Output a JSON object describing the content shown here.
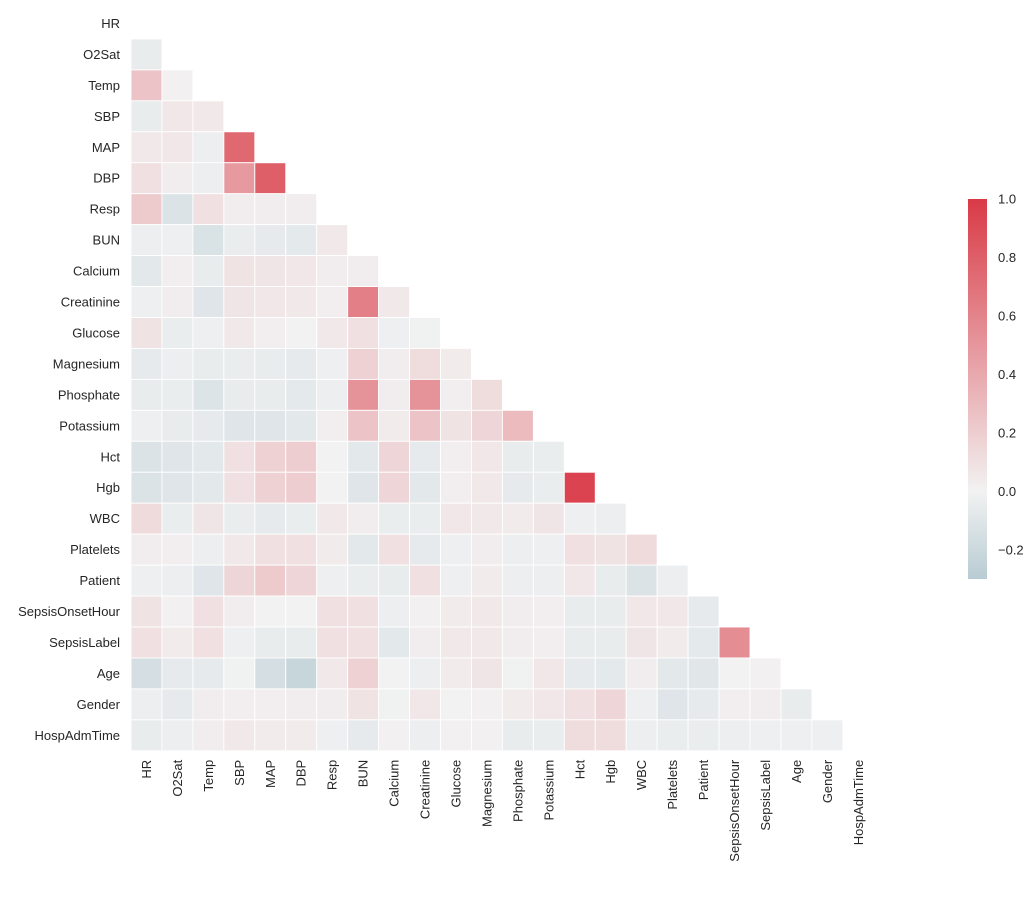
{
  "chart_data": {
    "type": "heatmap",
    "mask": "upper-triangle-including-diagonal",
    "grid": false,
    "legend_placement": "right",
    "variables": [
      "HR",
      "O2Sat",
      "Temp",
      "SBP",
      "MAP",
      "DBP",
      "Resp",
      "BUN",
      "Calcium",
      "Creatinine",
      "Glucose",
      "Magnesium",
      "Phosphate",
      "Potassium",
      "Hct",
      "Hgb",
      "WBC",
      "Platelets",
      "Patient",
      "SepsisOnsetHour",
      "SepsisLabel",
      "Age",
      "Gender",
      "HospAdmTime"
    ],
    "color_range": [
      -0.3,
      1.0
    ],
    "colors": {
      "negative": "#b8ccd3",
      "center": "#f2f2f2",
      "positive": "#d93a46",
      "cell_border": "#ffffff"
    },
    "colorbar_ticks": [
      "1.0",
      "0.8",
      "0.6",
      "0.4",
      "0.2",
      "0.0",
      "−0.2"
    ],
    "colorbar_tick_values": [
      1.0,
      0.8,
      0.6,
      0.4,
      0.2,
      0.0,
      -0.2
    ],
    "correlations": [
      [],
      [
        -0.05
      ],
      [
        0.25,
        0.01
      ],
      [
        -0.05,
        0.06,
        0.05
      ],
      [
        0.05,
        0.06,
        -0.03,
        0.75
      ],
      [
        0.1,
        0.03,
        -0.03,
        0.48,
        0.8
      ],
      [
        0.22,
        -0.12,
        0.1,
        0.03,
        0.03,
        0.03
      ],
      [
        -0.03,
        -0.02,
        -0.13,
        -0.04,
        -0.06,
        -0.07,
        0.05
      ],
      [
        -0.08,
        0.02,
        -0.05,
        0.08,
        0.07,
        0.06,
        0.03,
        0.03
      ],
      [
        -0.02,
        0.03,
        -0.1,
        0.07,
        0.06,
        0.05,
        0.02,
        0.62,
        0.05
      ],
      [
        0.08,
        -0.04,
        -0.02,
        0.05,
        0.02,
        0.0,
        0.05,
        0.1,
        -0.02,
        -0.01
      ],
      [
        -0.06,
        -0.03,
        -0.05,
        -0.04,
        -0.05,
        -0.06,
        -0.02,
        0.18,
        0.03,
        0.12,
        0.04
      ],
      [
        -0.05,
        -0.04,
        -0.11,
        -0.05,
        -0.05,
        -0.07,
        -0.03,
        0.52,
        0.03,
        0.52,
        0.02,
        0.12
      ],
      [
        -0.02,
        -0.05,
        -0.06,
        -0.1,
        -0.1,
        -0.08,
        0.02,
        0.25,
        0.04,
        0.25,
        0.08,
        0.15,
        0.3
      ],
      [
        -0.12,
        -0.1,
        -0.08,
        0.1,
        0.18,
        0.2,
        0.0,
        -0.08,
        0.15,
        -0.06,
        0.02,
        0.06,
        -0.05,
        -0.04
      ],
      [
        -0.12,
        -0.1,
        -0.08,
        0.1,
        0.18,
        0.2,
        0.0,
        -0.1,
        0.15,
        -0.08,
        0.02,
        0.05,
        -0.06,
        -0.04,
        0.95
      ],
      [
        0.13,
        -0.04,
        0.07,
        -0.04,
        -0.06,
        -0.04,
        0.05,
        0.03,
        -0.04,
        -0.04,
        0.06,
        0.05,
        0.04,
        0.07,
        -0.02,
        -0.03
      ],
      [
        0.03,
        0.02,
        -0.03,
        0.05,
        0.1,
        0.1,
        0.04,
        -0.08,
        0.1,
        -0.06,
        -0.02,
        0.03,
        -0.03,
        -0.02,
        0.1,
        0.08,
        0.13
      ],
      [
        -0.02,
        -0.03,
        -0.1,
        0.15,
        0.22,
        0.15,
        -0.02,
        -0.04,
        -0.05,
        0.1,
        -0.02,
        0.04,
        -0.03,
        -0.03,
        0.06,
        -0.05,
        -0.12,
        -0.03
      ],
      [
        0.08,
        0.01,
        0.1,
        0.03,
        0.0,
        0.0,
        0.1,
        0.1,
        -0.03,
        0.01,
        0.04,
        0.05,
        0.03,
        0.02,
        -0.05,
        -0.05,
        0.06,
        0.06,
        -0.06
      ],
      [
        0.1,
        0.04,
        0.1,
        -0.02,
        -0.05,
        -0.05,
        0.1,
        0.1,
        -0.08,
        0.03,
        0.05,
        0.05,
        0.03,
        0.02,
        -0.05,
        -0.05,
        0.07,
        0.04,
        -0.07,
        0.55
      ],
      [
        -0.15,
        -0.06,
        -0.06,
        -0.01,
        -0.15,
        -0.22,
        0.05,
        0.18,
        0.0,
        -0.03,
        0.04,
        0.07,
        -0.01,
        0.06,
        -0.06,
        -0.07,
        0.03,
        -0.08,
        -0.09,
        0.0,
        0.01
      ],
      [
        -0.03,
        -0.06,
        0.03,
        0.02,
        0.02,
        0.03,
        0.03,
        0.08,
        -0.01,
        0.06,
        0.0,
        0.01,
        0.04,
        0.06,
        0.1,
        0.15,
        -0.02,
        -0.1,
        -0.06,
        0.02,
        0.03,
        -0.05
      ],
      [
        -0.05,
        -0.03,
        0.03,
        0.05,
        0.04,
        0.04,
        -0.02,
        -0.06,
        0.01,
        -0.03,
        0.01,
        0.01,
        -0.05,
        -0.04,
        0.12,
        0.12,
        -0.03,
        -0.04,
        -0.04,
        -0.03,
        -0.02,
        -0.02,
        -0.02
      ]
    ]
  }
}
